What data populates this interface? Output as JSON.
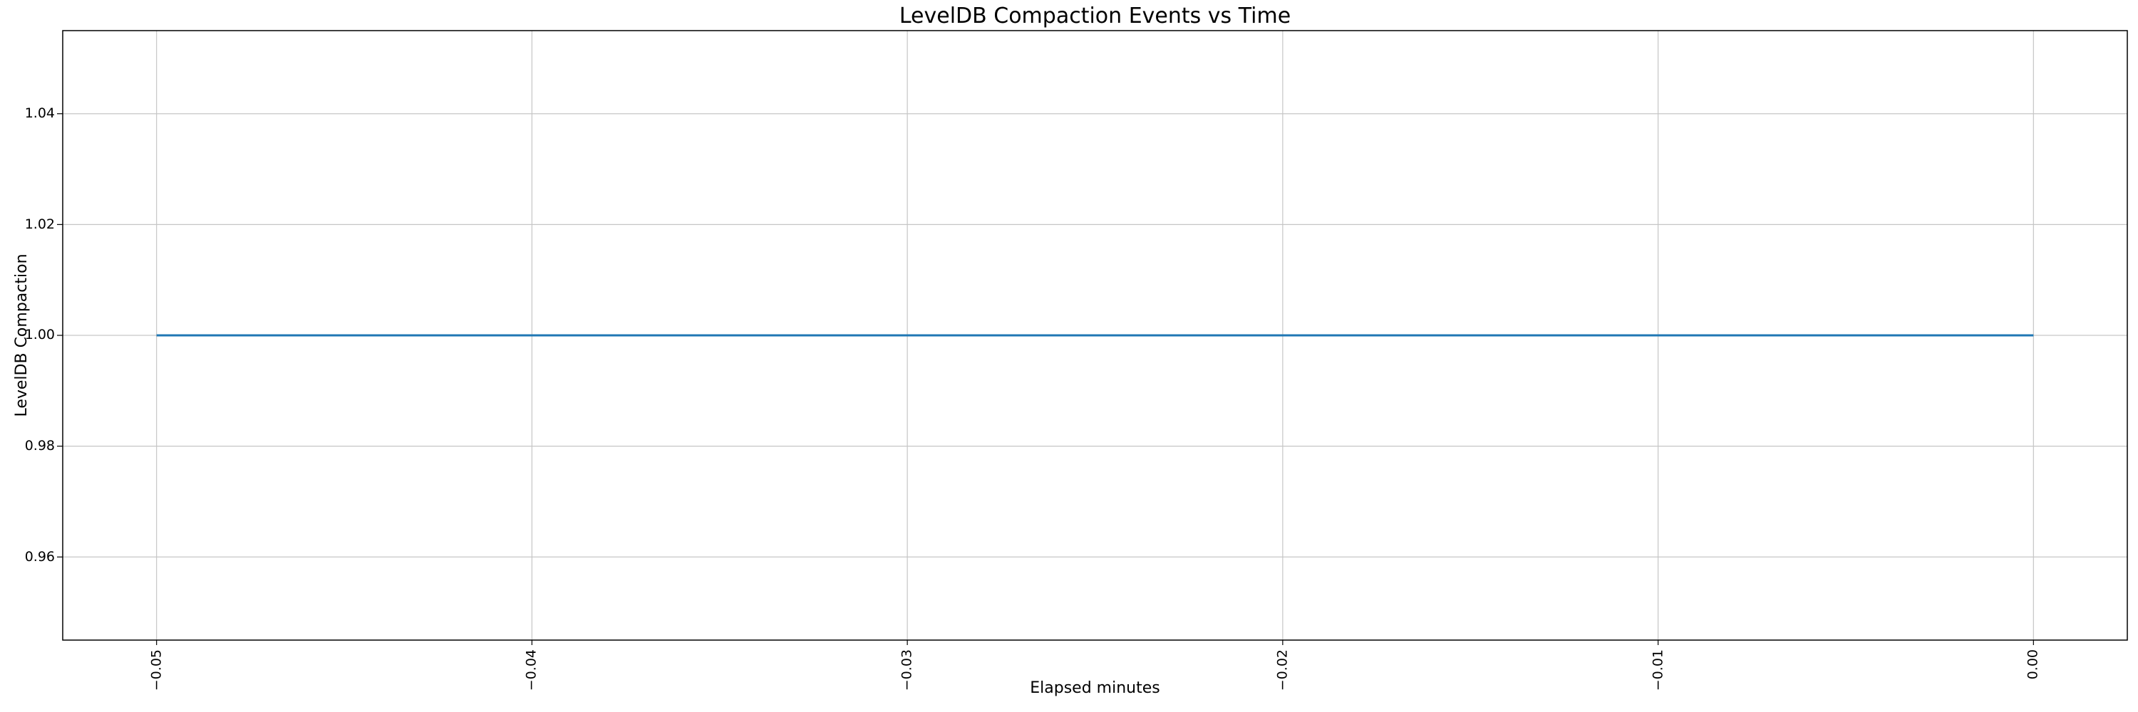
{
  "figure": {
    "background": "#ffffff",
    "text_color": "#000000"
  },
  "chart_data": {
    "type": "line",
    "title": "LevelDB Compaction Events vs Time",
    "xlabel": "Elapsed minutes",
    "ylabel": "LevelDB Compaction",
    "grid": true,
    "legend": null,
    "xlim": [
      -0.0525,
      0.0025
    ],
    "ylim": [
      0.945,
      1.055
    ],
    "xticks": {
      "values": [
        -0.05,
        -0.04,
        -0.03,
        -0.02,
        -0.01,
        0.0
      ],
      "labels": [
        "−0.05",
        "−0.04",
        "−0.03",
        "−0.02",
        "−0.01",
        "0.00"
      ],
      "rotation": 90
    },
    "yticks": {
      "values": [
        0.96,
        0.98,
        1.0,
        1.02,
        1.04
      ],
      "labels": [
        "0.96",
        "0.98",
        "1.00",
        "1.02",
        "1.04"
      ]
    },
    "series": [
      {
        "name": "LevelDB Compaction",
        "color": "#1f77b4",
        "x": [
          -0.05,
          0.0
        ],
        "y": [
          1.0,
          1.0
        ]
      }
    ],
    "colors": {
      "line": "#1f77b4",
      "grid": "#c6c6c6",
      "spine": "#000000",
      "tick": "#000000"
    }
  }
}
